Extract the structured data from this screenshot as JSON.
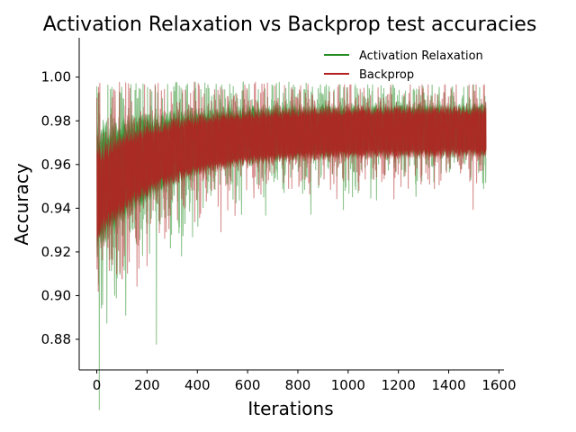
{
  "chart_data": {
    "type": "line",
    "title": "Activation Relaxation vs Backprop test accuracies",
    "xlabel": "Iterations",
    "ylabel": "Accuracy",
    "xlim": [
      -70,
      1620
    ],
    "ylim": [
      0.866,
      1.018
    ],
    "xticks": [
      0,
      200,
      400,
      600,
      800,
      1000,
      1200,
      1400,
      1600
    ],
    "yticks": [
      0.88,
      0.9,
      0.92,
      0.94,
      0.96,
      0.98,
      1.0
    ],
    "ytick_labels": [
      "0.88",
      "0.90",
      "0.92",
      "0.94",
      "0.96",
      "0.98",
      "1.00"
    ],
    "grid": false,
    "legend_position": "top-right",
    "n_points": 1550,
    "series": [
      {
        "name": "Activation Relaxation",
        "color": "#228b22",
        "mean_start": 0.948,
        "mean_end": 0.976,
        "spread_start": 0.04,
        "spread_end": 0.014,
        "band_start": 0.025,
        "band_end": 0.01,
        "max": 0.998
      },
      {
        "name": "Backprop",
        "color": "#b22222",
        "mean_start": 0.946,
        "mean_end": 0.975,
        "spread_start": 0.034,
        "spread_end": 0.013,
        "band_start": 0.018,
        "band_end": 0.01,
        "max": 0.998
      }
    ]
  }
}
